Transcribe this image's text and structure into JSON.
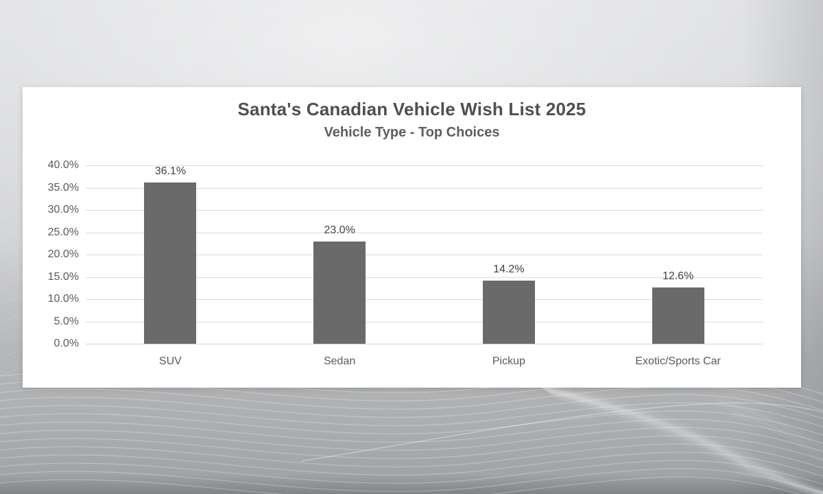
{
  "chart_data": {
    "type": "bar",
    "title": "Santa's Canadian Vehicle Wish List 2025",
    "subtitle": "Vehicle Type - Top Choices",
    "categories": [
      "SUV",
      "Sedan",
      "Pickup",
      "Exotic/Sports Car"
    ],
    "values": [
      36.1,
      23.0,
      14.2,
      12.6
    ],
    "data_labels": [
      "36.1%",
      "23.0%",
      "14.2%",
      "12.6%"
    ],
    "y_ticks": [
      "40.0%",
      "35.0%",
      "30.0%",
      "25.0%",
      "20.0%",
      "15.0%",
      "10.0%",
      "5.0%",
      "0.0%"
    ],
    "ylim": [
      0,
      40
    ],
    "y_tick_step": 5,
    "grid": true,
    "legend_position": "none",
    "colors": {
      "bar": "#6a6a6a",
      "gridline": "#dadada",
      "axis_line": "#d2d2d2",
      "title_text": "#4f4f4f",
      "subtitle_text": "#5d5d5d",
      "tick_text": "#595959",
      "data_label_text": "#3f3f3f",
      "plot_background": "#ffffff"
    }
  }
}
